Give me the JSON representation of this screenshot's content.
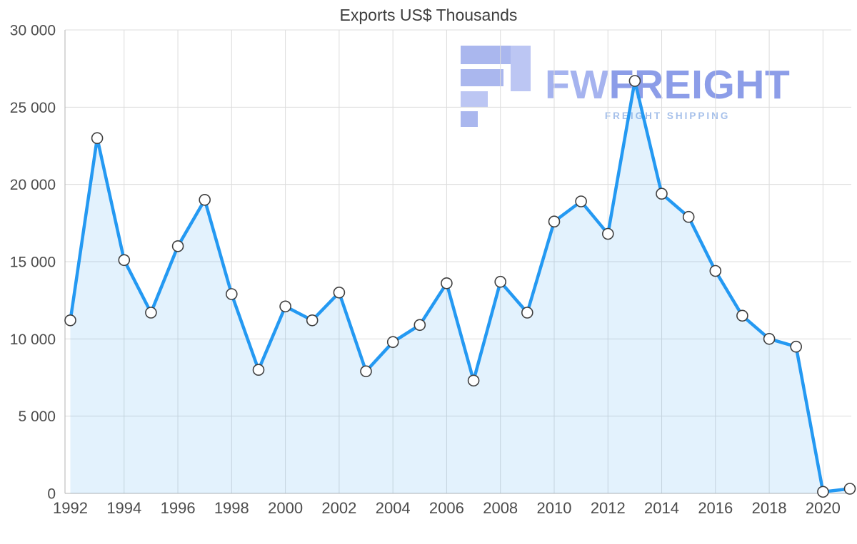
{
  "title": "Exports US$ Thousands",
  "watermark": {
    "brand_fw": "FW",
    "brand_rest": "FREIGHT",
    "tagline": "FREIGHT SHIPPING",
    "logo_color": "#aab7ee",
    "logo_color_light": "#bcc6f3",
    "brand_fw_color": "#a5b3ef",
    "brand_rest_color": "#8c9de8",
    "tagline_color": "#a6c0ea"
  },
  "chart_data": {
    "type": "area",
    "title": "Exports US$ Thousands",
    "series_name": "Exports",
    "x": [
      1992,
      1993,
      1994,
      1995,
      1996,
      1997,
      1998,
      1999,
      2000,
      2001,
      2002,
      2003,
      2004,
      2005,
      2006,
      2007,
      2008,
      2009,
      2010,
      2011,
      2012,
      2013,
      2014,
      2015,
      2016,
      2017,
      2018,
      2019,
      2020,
      2021
    ],
    "values": [
      11200,
      23000,
      15100,
      11700,
      16000,
      19000,
      12900,
      8000,
      12100,
      11200,
      13000,
      7900,
      9800,
      10900,
      13600,
      7300,
      13700,
      11700,
      17600,
      18900,
      16800,
      26700,
      19400,
      17900,
      14400,
      11500,
      10000,
      9500,
      100,
      300
    ],
    "ylim": [
      0,
      30000
    ],
    "y_ticks": [
      0,
      5000,
      10000,
      15000,
      20000,
      25000,
      30000
    ],
    "y_tick_labels": [
      "0",
      "5 000",
      "10 000",
      "15 000",
      "20 000",
      "25 000",
      "30 000"
    ],
    "x_ticks": [
      1992,
      1994,
      1996,
      1998,
      2000,
      2002,
      2004,
      2006,
      2008,
      2010,
      2012,
      2014,
      2016,
      2018,
      2020
    ],
    "x_tick_labels": [
      "1992",
      "1994",
      "1996",
      "1998",
      "2000",
      "2002",
      "2004",
      "2006",
      "2008",
      "2010",
      "2012",
      "2014",
      "2016",
      "2018",
      "2020"
    ],
    "grid": true,
    "legend": "none",
    "xlabel": "",
    "ylabel": "",
    "line_color": "#2499f2",
    "area_color": "rgba(36,153,242,0.13)",
    "marker_fill": "#ffffff",
    "marker_stroke": "#3f3f3f",
    "grid_color": "#dcdcdc",
    "axis_color": "#b3b3b3",
    "label_color": "#4c4c4c"
  }
}
